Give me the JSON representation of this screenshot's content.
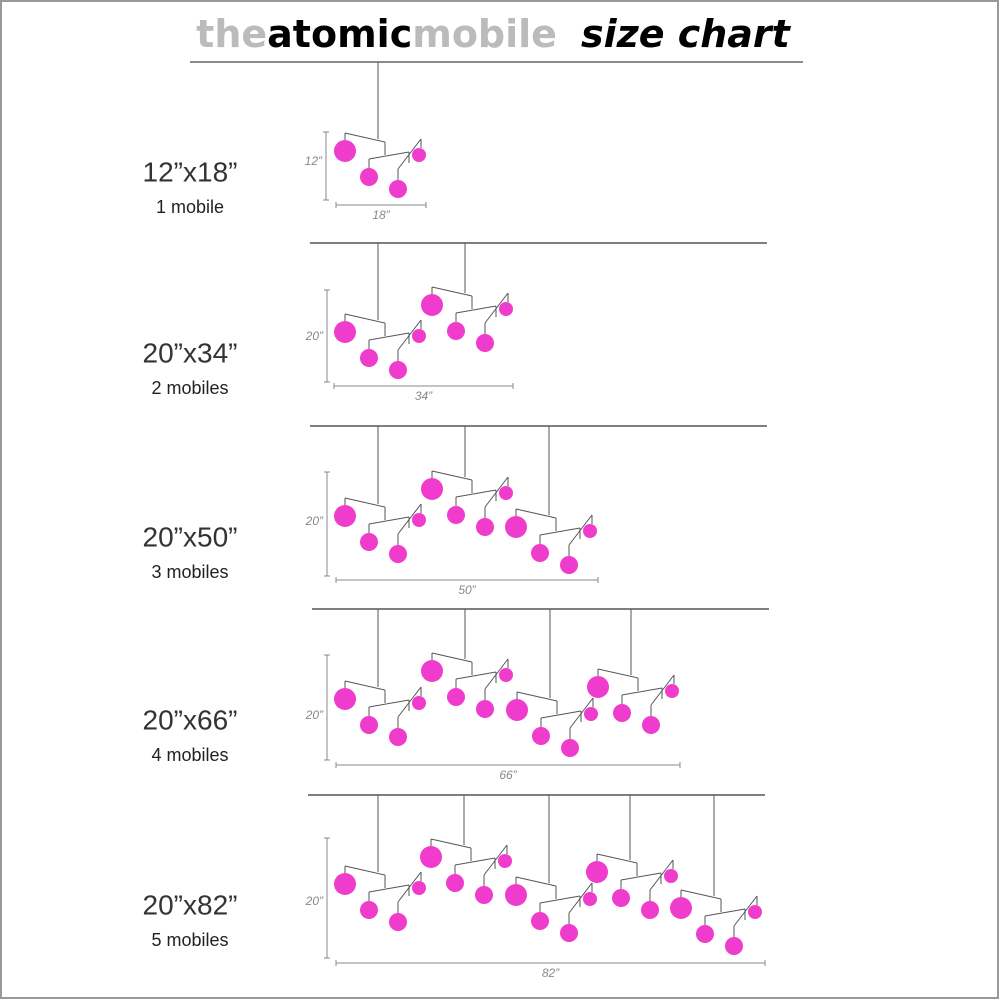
{
  "header": {
    "title_the": "the",
    "title_atomic": "atomic",
    "title_mobile": "mobile",
    "title_size_chart": "size chart"
  },
  "rows": [
    {
      "size": "12”x18”",
      "count": "1 mobile",
      "height": "12”",
      "width": "18”"
    },
    {
      "size": "20”x34”",
      "count": "2 mobiles",
      "height": "20”",
      "width": "34”"
    },
    {
      "size": "20”x50”",
      "count": "3 mobiles",
      "height": "20”",
      "width": "50”"
    },
    {
      "size": "20”x66”",
      "count": "4 mobiles",
      "height": "20”",
      "width": "66”"
    },
    {
      "size": "20”x82”",
      "count": "5 mobiles",
      "height": "20”",
      "width": "82”"
    }
  ]
}
